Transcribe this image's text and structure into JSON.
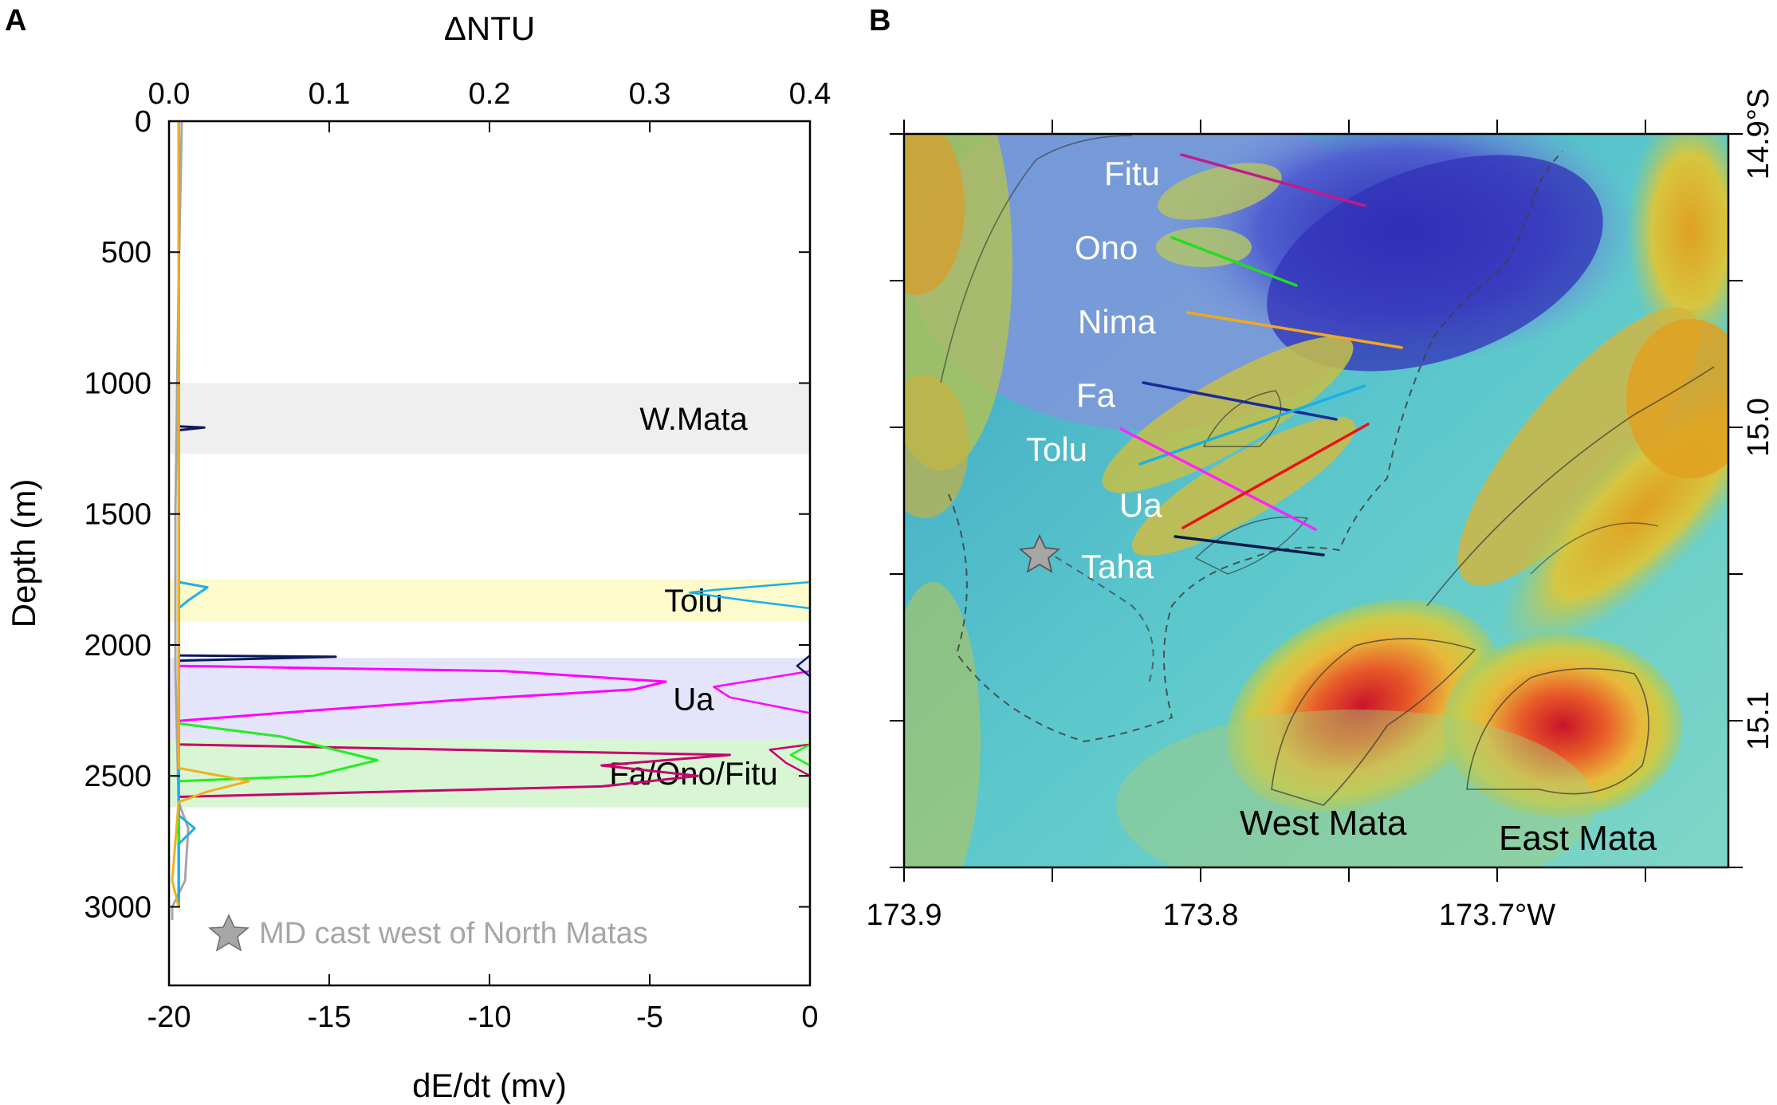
{
  "panel_a": {
    "letter": "A",
    "chart_data": {
      "type": "line",
      "y_axis": {
        "label": "Depth (m)",
        "range": [
          0,
          3300
        ],
        "ticks": [
          0,
          500,
          1000,
          1500,
          2000,
          2500,
          3000
        ],
        "tick_labels": [
          "0",
          "500",
          "1000",
          "1500",
          "2000",
          "2500",
          "3000"
        ]
      },
      "x_bottom": {
        "label": "dE/dt (mv)",
        "range": [
          -20,
          0
        ],
        "ticks": [
          -20,
          -15,
          -10,
          -5,
          0
        ],
        "tick_labels": [
          "-20",
          "-15",
          "-10",
          "-5",
          "0"
        ]
      },
      "x_top": {
        "label": "ΔNTU",
        "range": [
          0.0,
          0.4
        ],
        "ticks": [
          0.0,
          0.1,
          0.2,
          0.3,
          0.4
        ],
        "tick_labels": [
          "0.0",
          "0.1",
          "0.2",
          "0.3",
          "0.4"
        ]
      },
      "bands": [
        {
          "label": "W.Mata",
          "depth": [
            1000,
            1270
          ],
          "color": "#efefef"
        },
        {
          "label": "Tolu",
          "depth": [
            1750,
            1910
          ],
          "color": "#fdfacb"
        },
        {
          "label": "Ua",
          "depth": [
            2050,
            2360
          ],
          "color": "#e4e4fa"
        },
        {
          "label": "Fa/Ono/Fitu",
          "depth": [
            2360,
            2620
          ],
          "color": "#d8f5d4"
        }
      ],
      "series": [
        {
          "color": "#a6a6a6",
          "points": [
            [
              -19.6,
              0
            ],
            [
              -19.7,
              600
            ],
            [
              -19.8,
              1500
            ],
            [
              -19.8,
              2100
            ],
            [
              -19.7,
              2600
            ],
            [
              -19.4,
              2700
            ],
            [
              -19.5,
              2900
            ],
            [
              -19.9,
              3000
            ],
            [
              -19.9,
              3050
            ]
          ]
        },
        {
          "color": "#0a1a5a",
          "points": [
            [
              -19.7,
              0
            ],
            [
              -19.7,
              1000
            ],
            [
              -19.7,
              1165
            ],
            [
              -18.9,
              1170
            ],
            [
              -19.7,
              1180
            ],
            [
              -19.7,
              2040
            ],
            [
              -14.8,
              2045
            ],
            [
              -19.7,
              2060
            ],
            [
              -19.7,
              3000
            ]
          ]
        },
        {
          "color": "#ff00ff",
          "points": [
            [
              -19.7,
              0
            ],
            [
              -19.7,
              2080
            ],
            [
              -9.5,
              2100
            ],
            [
              -4.5,
              2140
            ],
            [
              -5.5,
              2170
            ],
            [
              -11,
              2210
            ],
            [
              -15.5,
              2250
            ],
            [
              -19.7,
              2290
            ],
            [
              -19.7,
              3000
            ]
          ]
        },
        {
          "color": "#c8006e",
          "points": [
            [
              -19.7,
              0
            ],
            [
              -19.7,
              2380
            ],
            [
              -2.5,
              2420
            ],
            [
              -6.5,
              2460
            ],
            [
              -3.5,
              2500
            ],
            [
              -6.5,
              2540
            ],
            [
              -19.7,
              2580
            ],
            [
              -19.7,
              3000
            ]
          ]
        },
        {
          "color": "#22ee22",
          "points": [
            [
              -19.7,
              0
            ],
            [
              -19.7,
              2300
            ],
            [
              -16.5,
              2350
            ],
            [
              -13.5,
              2440
            ],
            [
              -15.5,
              2500
            ],
            [
              -19.7,
              2520
            ],
            [
              -19.7,
              3000
            ]
          ]
        },
        {
          "color": "#1ab0e6",
          "points": [
            [
              -19.7,
              0
            ],
            [
              -19.7,
              1760
            ],
            [
              -18.8,
              1780
            ],
            [
              -19.4,
              1830
            ],
            [
              -19.7,
              1860
            ],
            [
              -19.7,
              2650
            ],
            [
              -19.2,
              2700
            ],
            [
              -19.7,
              2760
            ],
            [
              -19.7,
              3000
            ]
          ]
        },
        {
          "color": "#f0b020",
          "points": [
            [
              -19.7,
              0
            ],
            [
              -19.7,
              2470
            ],
            [
              -17.5,
              2520
            ],
            [
              -18.8,
              2560
            ],
            [
              -19.7,
              2600
            ],
            [
              -19.9,
              2900
            ],
            [
              -19.7,
              3000
            ]
          ]
        }
      ],
      "top_axis_series": [
        {
          "color": "#1ab0e6",
          "points": [
            [
              0.4,
              1760
            ],
            [
              0.34,
              1790
            ],
            [
              0.325,
              1800
            ],
            [
              0.36,
              1830
            ],
            [
              0.4,
              1860
            ]
          ]
        },
        {
          "color": "#ff00ff",
          "points": [
            [
              0.4,
              2100
            ],
            [
              0.34,
              2160
            ],
            [
              0.35,
              2200
            ],
            [
              0.4,
              2260
            ]
          ]
        },
        {
          "color": "#c8006e",
          "points": [
            [
              0.4,
              2380
            ],
            [
              0.375,
              2400
            ],
            [
              0.385,
              2450
            ],
            [
              0.4,
              2500
            ]
          ]
        },
        {
          "color": "#22ee22",
          "points": [
            [
              0.4,
              2380
            ],
            [
              0.388,
              2420
            ],
            [
              0.4,
              2460
            ]
          ]
        },
        {
          "color": "#0a1a5a",
          "points": [
            [
              0.4,
              2040
            ],
            [
              0.392,
              2080
            ],
            [
              0.4,
              2120
            ]
          ]
        }
      ]
    },
    "legend": {
      "text": "MD cast west of North Matas",
      "marker_color": "#a6a6a6"
    }
  },
  "panel_b": {
    "letter": "B",
    "x_axis": {
      "ticks": [
        173.9,
        173.8,
        173.7
      ],
      "tick_labels": [
        "173.9",
        "173.8",
        "173.7°W"
      ]
    },
    "y_axis": {
      "ticks": [
        14.9,
        15.0,
        15.1
      ],
      "tick_labels": [
        "14.9°S",
        "15.0",
        "15.1"
      ]
    },
    "transects": [
      {
        "label": "Fitu",
        "color": "#c41a8a"
      },
      {
        "label": "Ono",
        "color": "#22dd22"
      },
      {
        "label": "Nima",
        "color": "#f0a820"
      },
      {
        "label": "Fa",
        "color": "#1a2a9a"
      },
      {
        "label": "Tolu",
        "color": "#1ab0e6"
      },
      {
        "label": "Ua",
        "color": "#ff22ff"
      },
      {
        "label": "Ua",
        "color": "#ee1111"
      },
      {
        "label": "Taha",
        "color": "#0a1a4a"
      }
    ],
    "area_labels": [
      "West Mata",
      "East Mata"
    ],
    "star_color": "#a6a6a6"
  }
}
